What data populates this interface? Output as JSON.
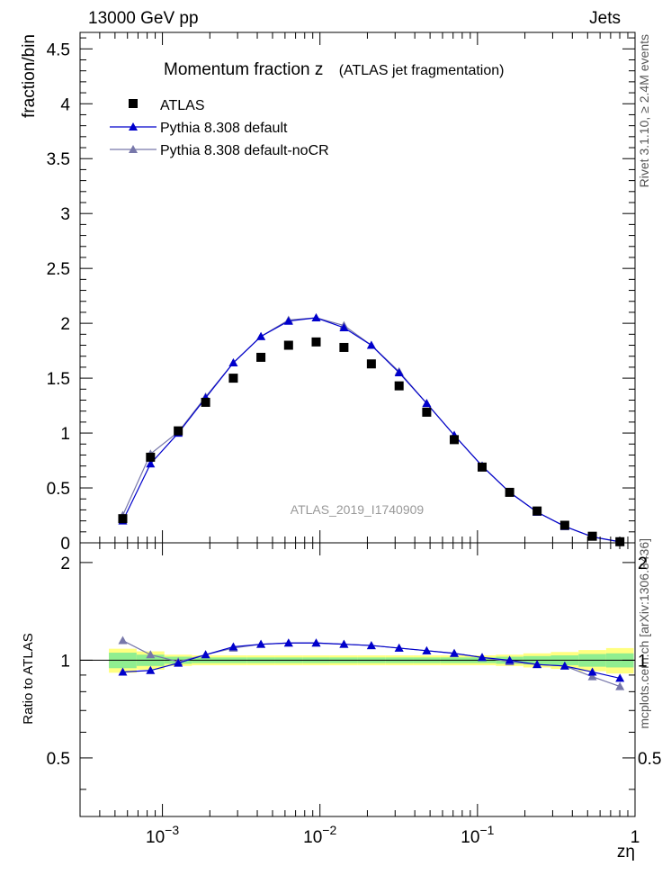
{
  "header": {
    "left": "13000 GeV pp",
    "right": "Jets"
  },
  "side_text": {
    "rivet": "Rivet 3.1.10, ≥ 2.4M events",
    "mcplots": "mcplots.cern.ch [arXiv:1306.3436]"
  },
  "analysis_label": "ATLAS_2019_I1740909",
  "chart_data": [
    {
      "type": "line",
      "title": "Momentum fraction z",
      "subtitle": "(ATLAS jet fragmentation)",
      "ylabel": "fraction/bin",
      "xlabel": "zη",
      "xscale": "log",
      "xlim": [
        0.0003,
        1.0
      ],
      "ylim": [
        0,
        4.65
      ],
      "yticks": [
        0,
        0.5,
        1,
        1.5,
        2,
        2.5,
        3,
        3.5,
        4,
        4.5
      ],
      "yticklabels": [
        "0",
        "0.5",
        "1",
        "1.5",
        "2",
        "2.5",
        "3",
        "3.5",
        "4",
        "4.5"
      ],
      "legend_position": "top-left",
      "x": [
        0.00056,
        0.00084,
        0.00126,
        0.00188,
        0.00282,
        0.00422,
        0.00632,
        0.00946,
        0.0142,
        0.0212,
        0.0318,
        0.0476,
        0.0712,
        0.107,
        0.16,
        0.239,
        0.358,
        0.536,
        0.802
      ],
      "series": [
        {
          "name": "ATLAS",
          "marker": "square",
          "color": "#000000",
          "values": [
            0.22,
            0.78,
            1.02,
            1.28,
            1.5,
            1.69,
            1.8,
            1.83,
            1.78,
            1.63,
            1.43,
            1.19,
            0.94,
            0.69,
            0.46,
            0.29,
            0.16,
            0.06,
            0.01
          ]
        },
        {
          "name": "Pythia 8.308 default",
          "marker": "triangle",
          "color": "#0000cc",
          "values": [
            0.2,
            0.72,
            1.0,
            1.32,
            1.64,
            1.88,
            2.02,
            2.05,
            1.96,
            1.8,
            1.55,
            1.27,
            0.98,
            0.7,
            0.46,
            0.28,
            0.15,
            0.055,
            0.009
          ]
        },
        {
          "name": "Pythia 8.308 default-noCR",
          "marker": "triangle",
          "color": "#7777aa",
          "values": [
            0.25,
            0.81,
            1.01,
            1.33,
            1.64,
            1.88,
            2.03,
            2.05,
            1.98,
            1.8,
            1.56,
            1.27,
            0.98,
            0.7,
            0.46,
            0.28,
            0.15,
            0.053,
            0.008
          ]
        }
      ]
    },
    {
      "type": "line",
      "ylabel": "Ratio to ATLAS",
      "xlabel": "zη",
      "xscale": "log",
      "xlim": [
        0.0003,
        1.0
      ],
      "ylim": [
        0.33,
        2.3
      ],
      "yticks": [
        0.5,
        1,
        2
      ],
      "yticklabels": [
        "0.5",
        "1",
        "2"
      ],
      "xticklabels": [
        "10",
        "10",
        "10",
        "1"
      ],
      "xtickexponents": [
        "−3",
        "−2",
        "−1",
        ""
      ],
      "x": [
        0.00056,
        0.00084,
        0.00126,
        0.00188,
        0.00282,
        0.00422,
        0.00632,
        0.00946,
        0.0142,
        0.0212,
        0.0318,
        0.0476,
        0.0712,
        0.107,
        0.16,
        0.239,
        0.358,
        0.536,
        0.802
      ],
      "band_inner": [
        0.055,
        0.04,
        0.025,
        0.02,
        0.02,
        0.02,
        0.02,
        0.02,
        0.02,
        0.02,
        0.02,
        0.02,
        0.02,
        0.02,
        0.025,
        0.03,
        0.035,
        0.045,
        0.05
      ],
      "band_outer": [
        0.085,
        0.065,
        0.04,
        0.035,
        0.035,
        0.035,
        0.035,
        0.035,
        0.035,
        0.035,
        0.035,
        0.035,
        0.035,
        0.035,
        0.04,
        0.05,
        0.06,
        0.075,
        0.09
      ],
      "series": [
        {
          "name": "Pythia 8.308 default",
          "marker": "triangle",
          "color": "#0000cc",
          "values": [
            0.92,
            0.93,
            0.98,
            1.04,
            1.1,
            1.12,
            1.13,
            1.13,
            1.12,
            1.11,
            1.09,
            1.07,
            1.05,
            1.02,
            1.0,
            0.97,
            0.96,
            0.92,
            0.88
          ]
        },
        {
          "name": "Pythia 8.308 default-noCR",
          "marker": "triangle",
          "color": "#7777aa",
          "values": [
            1.15,
            1.04,
            0.99,
            1.04,
            1.09,
            1.12,
            1.13,
            1.13,
            1.12,
            1.11,
            1.09,
            1.07,
            1.05,
            1.02,
            0.99,
            0.97,
            0.96,
            0.89,
            0.83
          ]
        }
      ]
    }
  ]
}
